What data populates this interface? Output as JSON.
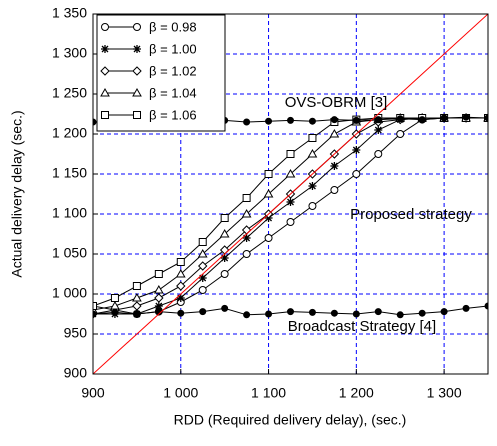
{
  "chart_data": {
    "type": "line",
    "x_label": "RDD (Required delivery delay), (sec.)",
    "y_label": "Actual delivery delay (sec.)",
    "xlim": [
      900,
      1350
    ],
    "ylim": [
      900,
      1350
    ],
    "xticks": [
      900,
      {
        "value": 1000,
        "label": "1 000"
      },
      {
        "value": 1100,
        "label": "1 100"
      },
      {
        "value": 1200,
        "label": "1 200"
      },
      {
        "value": 1300,
        "label": "1 300"
      }
    ],
    "yticks": [
      900,
      950,
      {
        "value": 1000,
        "label": "1 000"
      },
      {
        "value": 1050,
        "label": "1 050"
      },
      {
        "value": 1100,
        "label": "1 100"
      },
      {
        "value": 1150,
        "label": "1 150"
      },
      {
        "value": 1200,
        "label": "1 200"
      },
      {
        "value": 1250,
        "label": "1 250"
      },
      {
        "value": 1300,
        "label": "1 300"
      },
      {
        "value": 1350,
        "label": "1 350"
      }
    ],
    "grid": true,
    "grid_color": "#0000ff",
    "legend_position": "upper left",
    "x": [
      900,
      925,
      950,
      975,
      1000,
      1025,
      1050,
      1075,
      1100,
      1125,
      1150,
      1175,
      1200,
      1225,
      1250,
      1275,
      1300,
      1325,
      1350
    ],
    "series": [
      {
        "name": "β = 0.98",
        "color": "#000000",
        "marker": "circle",
        "values": [
          985,
          980,
          975,
          978,
          990,
          1005,
          1025,
          1050,
          1070,
          1090,
          1110,
          1130,
          1150,
          1175,
          1200,
          1218,
          1220,
          1220,
          1220
        ]
      },
      {
        "name": "β = 1.00",
        "color": "#000000",
        "marker": "star",
        "values": [
          975,
          975,
          975,
          985,
          995,
          1020,
          1045,
          1070,
          1095,
          1115,
          1135,
          1160,
          1180,
          1205,
          1218,
          1220,
          1220,
          1220,
          1220
        ]
      },
      {
        "name": "β = 1.02",
        "color": "#000000",
        "marker": "diamond",
        "values": [
          975,
          980,
          985,
          995,
          1010,
          1035,
          1055,
          1080,
          1100,
          1125,
          1150,
          1175,
          1200,
          1215,
          1218,
          1220,
          1220,
          1220,
          1220
        ]
      },
      {
        "name": "β = 1.04",
        "color": "#000000",
        "marker": "triangle",
        "values": [
          980,
          985,
          995,
          1005,
          1025,
          1050,
          1075,
          1100,
          1125,
          1150,
          1175,
          1200,
          1215,
          1218,
          1220,
          1220,
          1220,
          1220,
          1220
        ]
      },
      {
        "name": "β = 1.06",
        "color": "#000000",
        "marker": "square",
        "values": [
          985,
          995,
          1010,
          1025,
          1040,
          1065,
          1095,
          1120,
          1150,
          1175,
          1195,
          1215,
          1218,
          1220,
          1220,
          1220,
          1220,
          1220,
          1220
        ]
      },
      {
        "color": "#000000",
        "marker": "dot",
        "values": [
          1215,
          1216,
          1215,
          1217,
          1216,
          1215,
          1217,
          1215,
          1216,
          1217,
          1216,
          1218,
          1217,
          1218,
          1219,
          1218,
          1220,
          1221,
          1220
        ]
      },
      {
        "color": "#000000",
        "marker": "dot",
        "values": [
          975,
          977,
          975,
          978,
          976,
          978,
          982,
          974,
          975,
          978,
          977,
          976,
          975,
          978,
          974,
          976,
          978,
          982,
          985
        ]
      },
      {
        "color": "#ff0000",
        "marker": "none",
        "x": [
          900,
          1350
        ],
        "values": [
          900,
          1350
        ]
      }
    ],
    "annotations": [
      "OVS-OBRM [3]",
      "Proposed strategy",
      "Broadcast Strategy [4]"
    ]
  }
}
